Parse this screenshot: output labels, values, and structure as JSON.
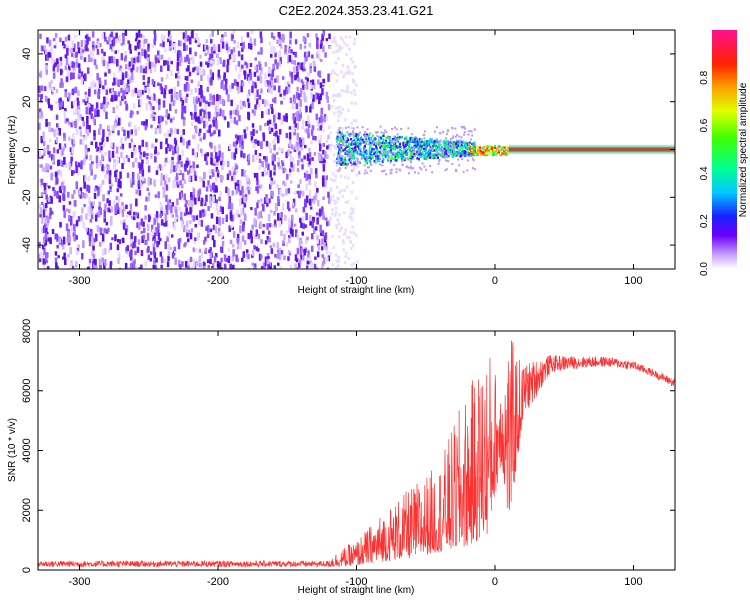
{
  "title": "C2E2.2024.353.23.41.G21",
  "chart_data": [
    {
      "type": "heatmap",
      "xlabel": "Height of straight line (km)",
      "ylabel": "Frequency (Hz)",
      "xlim": [
        -330,
        130
      ],
      "ylim": [
        -50,
        50
      ],
      "x_ticks": [
        -300,
        -200,
        -100,
        0,
        100
      ],
      "y_ticks": [
        -40,
        -20,
        0,
        20,
        40
      ],
      "colorbar": {
        "label": "Normalized spectral amplitude",
        "range": [
          0,
          1
        ],
        "ticks": [
          0.0,
          0.2,
          0.4,
          0.6,
          0.8
        ],
        "tick_labels": [
          "0.0",
          "0.2",
          "0.4",
          "0.6",
          "0.8"
        ]
      },
      "regions": [
        {
          "x_from": -330,
          "x_to": -120,
          "freq_from": -50,
          "freq_to": 50,
          "amplitude": 0.08,
          "description_level": "noise"
        },
        {
          "x_from": -115,
          "x_to": -20,
          "freq_from": -5,
          "freq_to": 6,
          "amplitude": 0.35
        },
        {
          "x_from": -20,
          "x_to": 10,
          "freq_from": -2,
          "freq_to": 3,
          "amplitude": 0.6
        },
        {
          "x_from": 10,
          "x_to": 130,
          "freq_from": -1,
          "freq_to": 1,
          "amplitude": 0.95
        }
      ]
    },
    {
      "type": "line",
      "xlabel": "Height of straight line (km)",
      "ylabel": "SNR (10 * v/v)",
      "xlim": [
        -330,
        130
      ],
      "ylim": [
        0,
        8000
      ],
      "x_ticks": [
        -300,
        -200,
        -100,
        0,
        100
      ],
      "y_ticks": [
        0,
        2000,
        4000,
        6000,
        8000
      ],
      "color": "#ff3030",
      "envelope": {
        "x": [
          -330,
          -120,
          -100,
          -80,
          -60,
          -40,
          -25,
          -15,
          -5,
          0,
          5,
          10,
          20,
          40,
          60,
          80,
          100,
          115,
          130
        ],
        "low": [
          100,
          100,
          150,
          300,
          400,
          600,
          700,
          900,
          1200,
          2500,
          3500,
          1500,
          5000,
          6600,
          6750,
          6800,
          6700,
          6450,
          6100
        ],
        "high": [
          450,
          450,
          1000,
          2000,
          2800,
          3600,
          5500,
          6500,
          7600,
          6800,
          7000,
          8000,
          6900,
          7200,
          7150,
          7150,
          7000,
          6700,
          6400
        ]
      }
    }
  ]
}
